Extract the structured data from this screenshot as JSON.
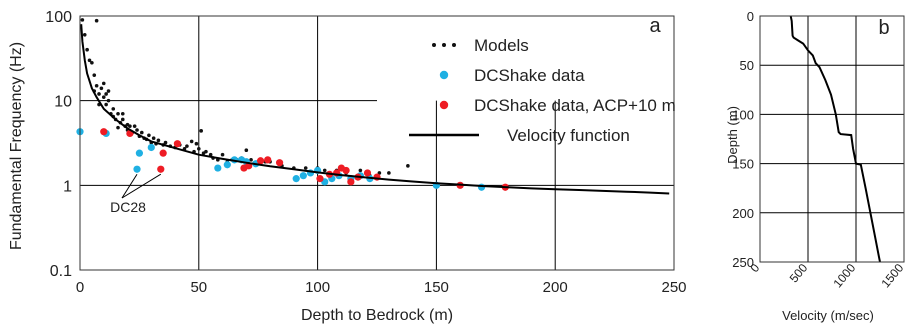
{
  "colors": {
    "models": "#111111",
    "dcshake": "#1fb0e3",
    "acp": "#ee1c24",
    "curve": "#000000",
    "grid": "#000000"
  },
  "chart_data": [
    {
      "type": "scatter",
      "panel_label": "a",
      "xlabel": "Depth to Bedrock (m)",
      "ylabel": "Fundamental Frequency (Hz)",
      "xlim": [
        0,
        250
      ],
      "ylim": [
        0.1,
        100
      ],
      "yscale": "log",
      "grid": true,
      "legend_position": "top-right",
      "x_ticks": [
        "0",
        "50",
        "100",
        "150",
        "200",
        "250"
      ],
      "y_ticks": [
        "0.1",
        "1",
        "10",
        "100"
      ],
      "annotation": {
        "text": "DC28",
        "points": [
          [
            24,
            1.55
          ],
          [
            34,
            1.55
          ]
        ]
      },
      "series": [
        {
          "name": "Models",
          "marker": "small-dot",
          "points": [
            [
              1,
              90
            ],
            [
              2,
              60
            ],
            [
              3,
              40
            ],
            [
              4,
              30
            ],
            [
              5,
              28
            ],
            [
              6,
              20
            ],
            [
              7,
              15
            ],
            [
              8,
              12
            ],
            [
              9,
              14
            ],
            [
              10,
              11
            ],
            [
              11,
              9
            ],
            [
              12,
              10
            ],
            [
              7,
              88
            ],
            [
              6,
              13
            ],
            [
              8,
              9
            ],
            [
              13,
              7
            ],
            [
              14,
              8
            ],
            [
              15,
              6
            ],
            [
              16,
              7
            ],
            [
              17,
              5.5
            ],
            [
              18,
              6
            ],
            [
              19,
              5
            ],
            [
              20,
              4.5
            ],
            [
              21,
              5
            ],
            [
              22,
              4.2
            ],
            [
              23,
              5
            ],
            [
              24,
              4.5
            ],
            [
              25,
              3.8
            ],
            [
              26,
              4.2
            ],
            [
              27,
              3.6
            ],
            [
              28,
              3.5
            ],
            [
              29,
              3.9
            ],
            [
              30,
              3.2
            ],
            [
              31,
              3.6
            ],
            [
              32,
              3.1
            ],
            [
              33,
              3.4
            ],
            [
              35,
              3.0
            ],
            [
              36,
              3.2
            ],
            [
              38,
              2.9
            ],
            [
              40,
              2.8
            ],
            [
              42,
              3.0
            ],
            [
              44,
              2.7
            ],
            [
              45,
              2.9
            ],
            [
              47,
              3.3
            ],
            [
              48,
              2.5
            ],
            [
              49,
              3.1
            ],
            [
              50,
              2.7
            ],
            [
              51,
              4.4
            ],
            [
              52,
              2.4
            ],
            [
              53,
              2.5
            ],
            [
              55,
              2.3
            ],
            [
              56,
              2.1
            ],
            [
              58,
              2.0
            ],
            [
              60,
              2.3
            ],
            [
              62,
              1.9
            ],
            [
              64,
              2.0
            ],
            [
              66,
              2.0
            ],
            [
              68,
              2.1
            ],
            [
              70,
              2.6
            ],
            [
              72,
              2.0
            ],
            [
              75,
              1.9
            ],
            [
              78,
              1.9
            ],
            [
              80,
              1.9
            ],
            [
              85,
              1.7
            ],
            [
              90,
              1.6
            ],
            [
              95,
              1.6
            ],
            [
              100,
              1.6
            ],
            [
              103,
              1.5
            ],
            [
              108,
              1.5
            ],
            [
              112,
              1.4
            ],
            [
              118,
              1.5
            ],
            [
              122,
              1.3
            ],
            [
              126,
              1.4
            ],
            [
              130,
              1.4
            ],
            [
              138,
              1.7
            ],
            [
              10,
              16
            ],
            [
              11,
              12
            ],
            [
              12,
              13
            ],
            [
              14,
              6.5
            ],
            [
              16,
              4.8
            ],
            [
              18,
              7
            ],
            [
              20,
              5.2
            ]
          ]
        },
        {
          "name": "DCShake data",
          "marker": "dot",
          "points": [
            [
              0,
              4.3
            ],
            [
              11,
              4.1
            ],
            [
              24,
              1.55
            ],
            [
              25,
              2.4
            ],
            [
              30,
              2.8
            ],
            [
              58,
              1.6
            ],
            [
              62,
              1.75
            ],
            [
              65,
              2.0
            ],
            [
              68,
              2.0
            ],
            [
              70,
              1.9
            ],
            [
              74,
              1.8
            ],
            [
              91,
              1.2
            ],
            [
              94,
              1.3
            ],
            [
              97,
              1.4
            ],
            [
              100,
              1.5
            ],
            [
              103,
              1.1
            ],
            [
              106,
              1.2
            ],
            [
              109,
              1.3
            ],
            [
              114,
              1.2
            ],
            [
              118,
              1.3
            ],
            [
              122,
              1.2
            ],
            [
              150,
              1.0
            ],
            [
              169,
              0.95
            ]
          ]
        },
        {
          "name": "DCShake data, ACP+10 m",
          "marker": "dot",
          "points": [
            [
              10,
              4.3
            ],
            [
              21,
              4.1
            ],
            [
              34,
              1.55
            ],
            [
              35,
              2.4
            ],
            [
              41,
              3.1
            ],
            [
              69,
              1.6
            ],
            [
              71,
              1.7
            ],
            [
              76,
              1.95
            ],
            [
              79,
              2.0
            ],
            [
              84,
              1.85
            ],
            [
              101,
              1.2
            ],
            [
              105,
              1.35
            ],
            [
              108,
              1.4
            ],
            [
              110,
              1.6
            ],
            [
              112,
              1.5
            ],
            [
              114,
              1.1
            ],
            [
              117,
              1.25
            ],
            [
              121,
              1.4
            ],
            [
              125,
              1.25
            ],
            [
              160,
              1.0
            ],
            [
              179,
              0.95
            ]
          ]
        },
        {
          "name": "Velocity function",
          "marker": "line",
          "points": [
            [
              0.5,
              80
            ],
            [
              1,
              50
            ],
            [
              2,
              30
            ],
            [
              3,
              21
            ],
            [
              5,
              14
            ],
            [
              7,
              11
            ],
            [
              10,
              8
            ],
            [
              15,
              6
            ],
            [
              20,
              4.7
            ],
            [
              25,
              3.9
            ],
            [
              30,
              3.3
            ],
            [
              40,
              2.75
            ],
            [
              50,
              2.3
            ],
            [
              60,
              2.05
            ],
            [
              70,
              1.85
            ],
            [
              80,
              1.68
            ],
            [
              90,
              1.55
            ],
            [
              100,
              1.42
            ],
            [
              110,
              1.32
            ],
            [
              120,
              1.24
            ],
            [
              130,
              1.17
            ],
            [
              140,
              1.11
            ],
            [
              150,
              1.06
            ],
            [
              160,
              1.02
            ],
            [
              170,
              0.98
            ],
            [
              180,
              0.95
            ],
            [
              190,
              0.92
            ],
            [
              200,
              0.9
            ],
            [
              210,
              0.88
            ],
            [
              220,
              0.86
            ],
            [
              230,
              0.84
            ],
            [
              240,
              0.82
            ],
            [
              248,
              0.8
            ]
          ]
        }
      ]
    },
    {
      "type": "line",
      "panel_label": "b",
      "xlabel": "Velocity (m/sec)",
      "ylabel": "Depth (m)",
      "xlim": [
        0,
        1500
      ],
      "ylim": [
        250,
        0
      ],
      "grid": true,
      "x_ticks": [
        "0",
        "500",
        "1000",
        "1500"
      ],
      "y_ticks": [
        "0",
        "50",
        "100",
        "150",
        "200",
        "250"
      ],
      "series": [
        {
          "name": "",
          "points": [
            [
              320,
              0
            ],
            [
              330,
              5
            ],
            [
              340,
              20
            ],
            [
              350,
              22
            ],
            [
              400,
              25
            ],
            [
              450,
              28
            ],
            [
              500,
              35
            ],
            [
              550,
              40
            ],
            [
              580,
              48
            ],
            [
              620,
              52
            ],
            [
              680,
              65
            ],
            [
              740,
              80
            ],
            [
              790,
              100
            ],
            [
              820,
              118
            ],
            [
              840,
              120
            ],
            [
              950,
              121
            ],
            [
              970,
              135
            ],
            [
              1000,
              150
            ],
            [
              1050,
              151
            ],
            [
              1100,
              175
            ],
            [
              1150,
              200
            ],
            [
              1200,
              225
            ],
            [
              1240,
              245
            ],
            [
              1250,
              250
            ]
          ]
        }
      ]
    }
  ]
}
